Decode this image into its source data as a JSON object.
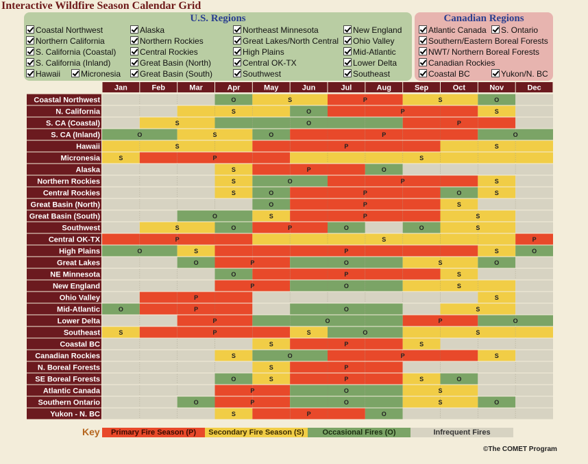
{
  "title": "Interactive Wildfire Season Calendar Grid",
  "us_panel": {
    "title": "U.S. Regions",
    "checkboxes": [
      "Coastal Northwest",
      "Northern California",
      "S. California (Coastal)",
      "S. California (Inland)",
      "Hawaii",
      "Micronesia",
      "Alaska",
      "Northern Rockies",
      "Central Rockies",
      "Great Basin (North)",
      "Great Basin (South)",
      "Northeast Minnesota",
      "Great Lakes/North Central",
      "High Plains",
      "Central OK-TX",
      "Southwest",
      "New England",
      "Ohio Valley",
      "Mid-Atlantic",
      "Lower Delta",
      "Southeast"
    ]
  },
  "ca_panel": {
    "title": "Canadian Regions",
    "checkboxes": [
      "Atlantic Canada",
      "S. Ontario",
      "Southern/Eastern Boreal Forests",
      "NWT/ Northern Boreal Forests",
      "Canadian Rockies",
      "Coastal BC",
      "Yukon/N. BC"
    ]
  },
  "key": {
    "label": "Key",
    "primary": "Primary Fire Season (P)",
    "secondary": "Secondary Fire Season (S)",
    "occasional": "Occasional Fires (O)",
    "infrequent": "Infrequent Fires"
  },
  "copyright": "©The COMET Program",
  "colors": {
    "P": "#e8492a",
    "S": "#f1cd46",
    "O": "#7ba466",
    "I": "#d7d3c2",
    "row_label_bg": "#6b1a1f",
    "header_bg": "#6b1a1f"
  },
  "chart_data": {
    "type": "heatmap",
    "title": "Interactive Wildfire Season Calendar Grid",
    "months": [
      "Jan",
      "Feb",
      "Mar",
      "Apr",
      "May",
      "Jun",
      "Jul",
      "Aug",
      "Sep",
      "Oct",
      "Nov",
      "Dec"
    ],
    "legend": {
      "P": "Primary Fire Season (P)",
      "S": "Secondary Fire Season (S)",
      "O": "Occasional Fires (O)",
      "I": "Infrequent Fires"
    },
    "rows": [
      {
        "region": "Coastal Northwest",
        "months": [
          "I",
          "I",
          "I",
          "O",
          "S",
          "S",
          "P",
          "P",
          "S",
          "S",
          "O",
          "I"
        ]
      },
      {
        "region": "N. California",
        "months": [
          "I",
          "I",
          "S",
          "S",
          "S",
          "O",
          "P",
          "P",
          "P",
          "P",
          "S",
          "I"
        ]
      },
      {
        "region": "S. CA (Coastal)",
        "months": [
          "I",
          "S",
          "S",
          "O",
          "O",
          "O",
          "O",
          "O",
          "P",
          "P",
          "P",
          "I"
        ]
      },
      {
        "region": "S. CA (Inland)",
        "months": [
          "O",
          "O",
          "S",
          "S",
          "O",
          "P",
          "P",
          "P",
          "P",
          "P",
          "O",
          "O"
        ]
      },
      {
        "region": "Hawaii",
        "months": [
          "S",
          "S",
          "S",
          "S",
          "P",
          "P",
          "P",
          "P",
          "P",
          "S",
          "S",
          "S"
        ]
      },
      {
        "region": "Micronesia",
        "months": [
          "S",
          "P",
          "P",
          "P",
          "P",
          "S",
          "S",
          "S",
          "S",
          "S",
          "S",
          "S"
        ]
      },
      {
        "region": "Alaska",
        "months": [
          "I",
          "I",
          "I",
          "S",
          "P",
          "P",
          "P",
          "O",
          "I",
          "I",
          "I",
          "I"
        ]
      },
      {
        "region": "Northern Rockies",
        "months": [
          "I",
          "I",
          "I",
          "S",
          "O",
          "O",
          "P",
          "P",
          "P",
          "P",
          "S",
          "I"
        ]
      },
      {
        "region": "Central Rockies",
        "months": [
          "I",
          "I",
          "I",
          "S",
          "O",
          "P",
          "P",
          "P",
          "P",
          "O",
          "S",
          "I"
        ]
      },
      {
        "region": "Great Basin (North)",
        "months": [
          "I",
          "I",
          "I",
          "I",
          "O",
          "P",
          "P",
          "P",
          "P",
          "S",
          "I",
          "I"
        ]
      },
      {
        "region": "Great Basin (South)",
        "months": [
          "I",
          "I",
          "O",
          "O",
          "S",
          "P",
          "P",
          "P",
          "P",
          "S",
          "S",
          "I"
        ]
      },
      {
        "region": "Southwest",
        "months": [
          "I",
          "S",
          "S",
          "O",
          "P",
          "P",
          "O",
          "I",
          "O",
          "S",
          "S",
          "I"
        ]
      },
      {
        "region": "Central OK-TX",
        "months": [
          "P",
          "P",
          "P",
          "P",
          "S",
          "S",
          "S",
          "S",
          "S",
          "S",
          "S",
          "P"
        ]
      },
      {
        "region": "High Plains",
        "months": [
          "O",
          "O",
          "S",
          "P",
          "P",
          "P",
          "P",
          "P",
          "P",
          "P",
          "S",
          "O"
        ]
      },
      {
        "region": "Great Lakes",
        "months": [
          "I",
          "I",
          "O",
          "P",
          "P",
          "O",
          "O",
          "O",
          "S",
          "S",
          "O",
          "I"
        ]
      },
      {
        "region": "NE Minnesota",
        "months": [
          "I",
          "I",
          "I",
          "O",
          "P",
          "P",
          "P",
          "P",
          "P",
          "S",
          "I",
          "I"
        ]
      },
      {
        "region": "New England",
        "months": [
          "I",
          "I",
          "I",
          "P",
          "P",
          "O",
          "O",
          "O",
          "S",
          "S",
          "S",
          "I"
        ]
      },
      {
        "region": "Ohio Valley",
        "months": [
          "I",
          "P",
          "P",
          "P",
          "I",
          "I",
          "I",
          "I",
          "I",
          "I",
          "S",
          "I"
        ]
      },
      {
        "region": "Mid-Atlantic",
        "months": [
          "O",
          "P",
          "P",
          "P",
          "I",
          "O",
          "O",
          "O",
          "I",
          "S",
          "S",
          "I"
        ]
      },
      {
        "region": "Lower Delta",
        "months": [
          "I",
          "I",
          "P",
          "P",
          "O",
          "O",
          "O",
          "O",
          "P",
          "P",
          "O",
          "O"
        ]
      },
      {
        "region": "Southeast",
        "months": [
          "S",
          "P",
          "P",
          "P",
          "P",
          "S",
          "O",
          "O",
          "S",
          "S",
          "S",
          "S"
        ]
      },
      {
        "region": "Coastal BC",
        "months": [
          "I",
          "I",
          "I",
          "I",
          "S",
          "P",
          "P",
          "P",
          "S",
          "I",
          "I",
          "I"
        ]
      },
      {
        "region": "Canadian Rockies",
        "months": [
          "I",
          "I",
          "I",
          "S",
          "O",
          "O",
          "P",
          "P",
          "P",
          "P",
          "S",
          "I"
        ]
      },
      {
        "region": "N. Boreal Forests",
        "months": [
          "I",
          "I",
          "I",
          "I",
          "S",
          "P",
          "P",
          "P",
          "I",
          "I",
          "I",
          "I"
        ]
      },
      {
        "region": "SE Boreal Forests",
        "months": [
          "I",
          "I",
          "I",
          "O",
          "S",
          "P",
          "P",
          "P",
          "S",
          "O",
          "I",
          "I"
        ]
      },
      {
        "region": "Atlantic Canada",
        "months": [
          "I",
          "I",
          "I",
          "P",
          "P",
          "O",
          "O",
          "O",
          "S",
          "S",
          "I",
          "I"
        ]
      },
      {
        "region": "Southern Ontario",
        "months": [
          "I",
          "I",
          "O",
          "P",
          "P",
          "O",
          "O",
          "O",
          "S",
          "S",
          "O",
          "I"
        ]
      },
      {
        "region": "Yukon - N. BC",
        "months": [
          "I",
          "I",
          "I",
          "S",
          "P",
          "P",
          "P",
          "O",
          "I",
          "I",
          "I",
          "I"
        ]
      }
    ]
  }
}
